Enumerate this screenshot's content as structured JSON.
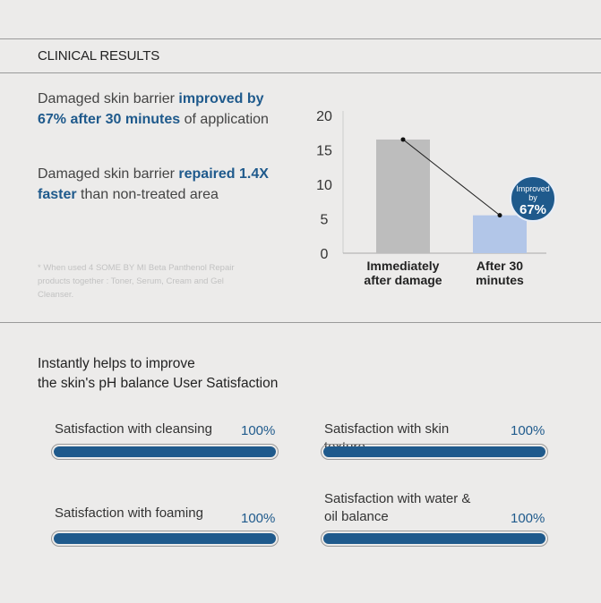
{
  "header": {
    "title": "CLINICAL RESULTS"
  },
  "claims": [
    {
      "pre": "Damaged skin barrier ",
      "bold": "improved by 67% after 30 minutes",
      "post": " of application"
    },
    {
      "pre": "Damaged skin barrier ",
      "bold": "repaired 1.4X faster",
      "post": " than non-treated area"
    }
  ],
  "footnote": "* When used 4 SOME BY MI Beta Panthenol Repair products together : Toner, Serum, Cream and Gel Cleanser.",
  "chart_data": {
    "type": "bar",
    "categories": [
      "Immediately after damage",
      "After 30 minutes"
    ],
    "values": [
      16.5,
      5.5
    ],
    "ylim": [
      0,
      20
    ],
    "yticks": [
      0,
      5,
      10,
      15,
      20
    ],
    "colors": [
      "#bdbdbd",
      "#b2c6e8"
    ],
    "badge": {
      "line1": "Improved",
      "line2": "by",
      "value": "67%",
      "color": "#1f5a8c"
    }
  },
  "satisfaction": {
    "title_line1": "Instantly helps to improve",
    "title_line2": "the skin's pH balance User Satisfaction",
    "items": [
      {
        "label": "Satisfaction with cleansing",
        "value": "100%",
        "fraction": 1.0
      },
      {
        "label": "Satisfaction with skin texture",
        "value": "100%",
        "fraction": 1.0
      },
      {
        "label": "Satisfaction with foaming",
        "value": "100%",
        "fraction": 1.0
      },
      {
        "label": "Satisfaction with water & oil balance",
        "value": "100%",
        "fraction": 1.0
      }
    ]
  }
}
